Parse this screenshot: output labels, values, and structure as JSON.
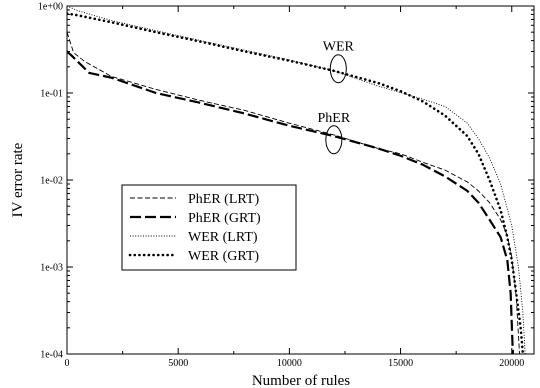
{
  "chart_data": {
    "type": "line",
    "xlabel": "Number of rules",
    "ylabel": "IV error rate",
    "xlim": [
      0,
      21000
    ],
    "ylim": [
      0.0001,
      1
    ],
    "yscale": "log",
    "x_ticks": [
      "0",
      "5000",
      "10000",
      "15000",
      "20000"
    ],
    "y_ticks": [
      "1e-04",
      "1e-03",
      "1e-02",
      "1e-01",
      "1e+00"
    ],
    "legend_position": "left-lower",
    "annotations": [
      {
        "text": "WER",
        "x": 12200,
        "y": 0.19
      },
      {
        "text": "PhER",
        "x": 12000,
        "y": 0.029
      }
    ],
    "series": [
      {
        "name": "PhER (LRT)",
        "style": "dashed-thin",
        "x": [
          0,
          300,
          800,
          2000,
          4000,
          6000,
          8000,
          10000,
          12000,
          14000,
          15000,
          16000,
          17000,
          18000,
          18500,
          19000,
          19500,
          19800,
          20000,
          20200,
          20350
        ],
        "y": [
          0.5,
          0.29,
          0.23,
          0.155,
          0.11,
          0.082,
          0.063,
          0.045,
          0.033,
          0.023,
          0.02,
          0.016,
          0.013,
          0.0095,
          0.0075,
          0.0055,
          0.0035,
          0.0023,
          0.0013,
          0.00045,
          0.0001
        ]
      },
      {
        "name": "PhER (GRT)",
        "style": "dashed-thick",
        "x": [
          0,
          200,
          1000,
          2000,
          4000,
          6000,
          8000,
          10000,
          12000,
          14000,
          15000,
          16000,
          17000,
          18000,
          18500,
          19000,
          19500,
          19800,
          19950,
          20050
        ],
        "y": [
          0.3,
          0.27,
          0.17,
          0.15,
          0.1,
          0.077,
          0.058,
          0.042,
          0.032,
          0.023,
          0.019,
          0.015,
          0.011,
          0.0075,
          0.0055,
          0.0035,
          0.0022,
          0.0012,
          0.0005,
          0.0001
        ]
      },
      {
        "name": "WER (LRT)",
        "style": "dotted-thin",
        "x": [
          0,
          500,
          2000,
          4000,
          6000,
          8000,
          10000,
          12000,
          14000,
          16000,
          17000,
          18000,
          18500,
          19000,
          19500,
          20000,
          20300,
          20500,
          20600
        ],
        "y": [
          1.0,
          0.88,
          0.68,
          0.52,
          0.4,
          0.31,
          0.24,
          0.18,
          0.12,
          0.085,
          0.07,
          0.045,
          0.03,
          0.018,
          0.009,
          0.003,
          0.001,
          0.0003,
          0.0001
        ]
      },
      {
        "name": "WER (GRT)",
        "style": "dotted-thick",
        "x": [
          0,
          500,
          2000,
          4000,
          6000,
          8000,
          10000,
          12000,
          14000,
          15000,
          16000,
          17000,
          18000,
          18500,
          19000,
          19500,
          19800,
          20000,
          20200,
          20400,
          20500
        ],
        "y": [
          0.82,
          0.78,
          0.65,
          0.5,
          0.39,
          0.3,
          0.235,
          0.18,
          0.13,
          0.105,
          0.08,
          0.055,
          0.032,
          0.02,
          0.01,
          0.0045,
          0.0022,
          0.0012,
          0.0005,
          0.0002,
          0.0001
        ]
      }
    ]
  }
}
